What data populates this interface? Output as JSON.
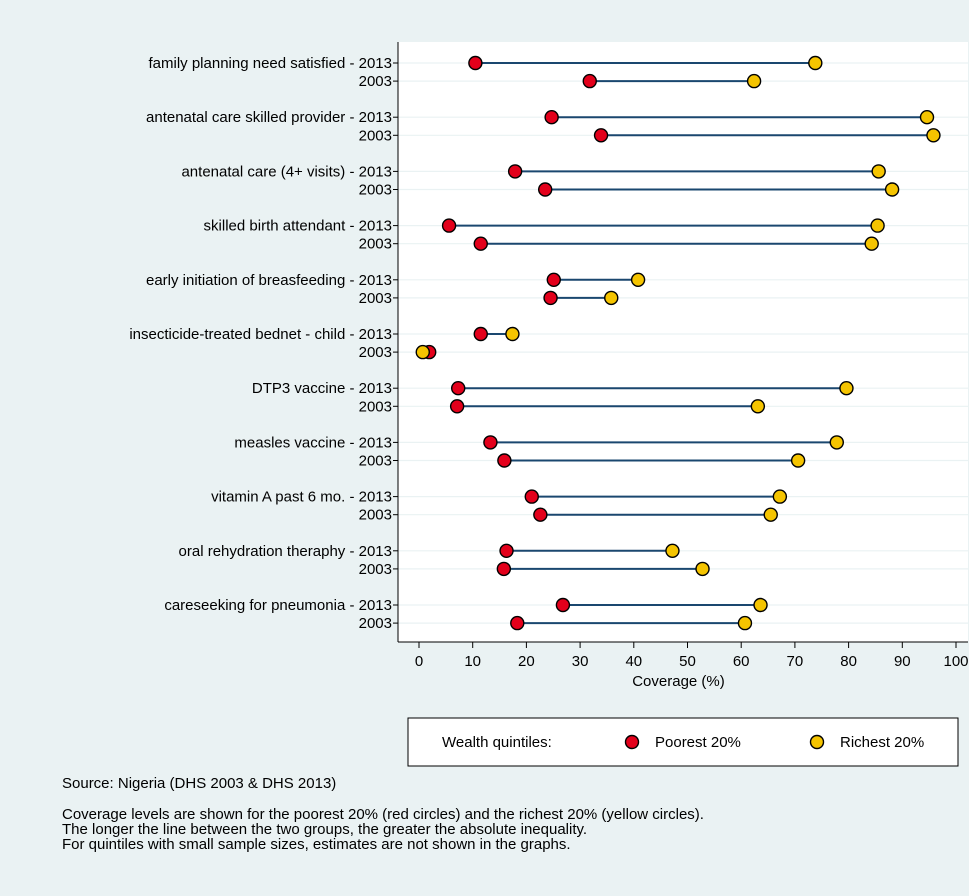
{
  "chart_data": {
    "type": "dumbbell",
    "xlabel": "Coverage (%)",
    "xlim": [
      0,
      100
    ],
    "xticks": [
      0,
      10,
      20,
      30,
      40,
      50,
      60,
      70,
      80,
      90,
      100
    ],
    "series": [
      {
        "name": "Poorest 20%",
        "color": "#e3001b"
      },
      {
        "name": "Richest 20%",
        "color": "#f5c400"
      }
    ],
    "legend": {
      "title": "Wealth quintiles:",
      "placement": "bottom"
    },
    "rows": [
      {
        "label": "family planning need satisfied - 2013",
        "poorest": 10.5,
        "richest": 73.8
      },
      {
        "label": "2003",
        "poorest": 31.8,
        "richest": 62.4
      },
      {
        "label": "antenatal care skilled provider - 2013",
        "poorest": 24.7,
        "richest": 94.6
      },
      {
        "label": "2003",
        "poorest": 33.9,
        "richest": 95.8
      },
      {
        "label": "antenatal care (4+ visits) - 2013",
        "poorest": 17.9,
        "richest": 85.6
      },
      {
        "label": "2003",
        "poorest": 23.5,
        "richest": 88.1
      },
      {
        "label": "skilled birth attendant - 2013",
        "poorest": 5.6,
        "richest": 85.4
      },
      {
        "label": "2003",
        "poorest": 11.5,
        "richest": 84.3
      },
      {
        "label": "early initiation of breasfeeding - 2013",
        "poorest": 25.1,
        "richest": 40.8
      },
      {
        "label": "2003",
        "poorest": 24.5,
        "richest": 35.8
      },
      {
        "label": "insecticide-treated bednet - child - 2013",
        "poorest": 11.5,
        "richest": 17.4
      },
      {
        "label": "2003",
        "poorest": 1.9,
        "richest": 0.7
      },
      {
        "label": "DTP3 vaccine - 2013",
        "poorest": 7.3,
        "richest": 79.6
      },
      {
        "label": "2003",
        "poorest": 7.1,
        "richest": 63.1
      },
      {
        "label": "measles vaccine - 2013",
        "poorest": 13.3,
        "richest": 77.8
      },
      {
        "label": "2003",
        "poorest": 15.9,
        "richest": 70.6
      },
      {
        "label": "vitamin A past 6 mo. - 2013",
        "poorest": 21.0,
        "richest": 67.2
      },
      {
        "label": "2003",
        "poorest": 22.6,
        "richest": 65.5
      },
      {
        "label": "oral rehydration theraphy - 2013",
        "poorest": 16.3,
        "richest": 47.2
      },
      {
        "label": "2003",
        "poorest": 15.8,
        "richest": 52.8
      },
      {
        "label": "careseeking for pneumonia - 2013",
        "poorest": 26.8,
        "richest": 63.6
      },
      {
        "label": "2003",
        "poorest": 18.3,
        "richest": 60.7
      }
    ],
    "colors": {
      "background": "#eaf2f3",
      "line": "#1a476f",
      "grid": "#eaf2f3"
    }
  },
  "notes": {
    "source": "Source: Nigeria (DHS 2003 & DHS 2013)",
    "line1": "Coverage levels are shown for the poorest 20% (red circles) and the richest 20% (yellow circles).",
    "line2": "The longer the line between the two groups, the greater the absolute inequality.",
    "line3": "For quintiles with small sample sizes, estimates are not shown in the graphs."
  }
}
